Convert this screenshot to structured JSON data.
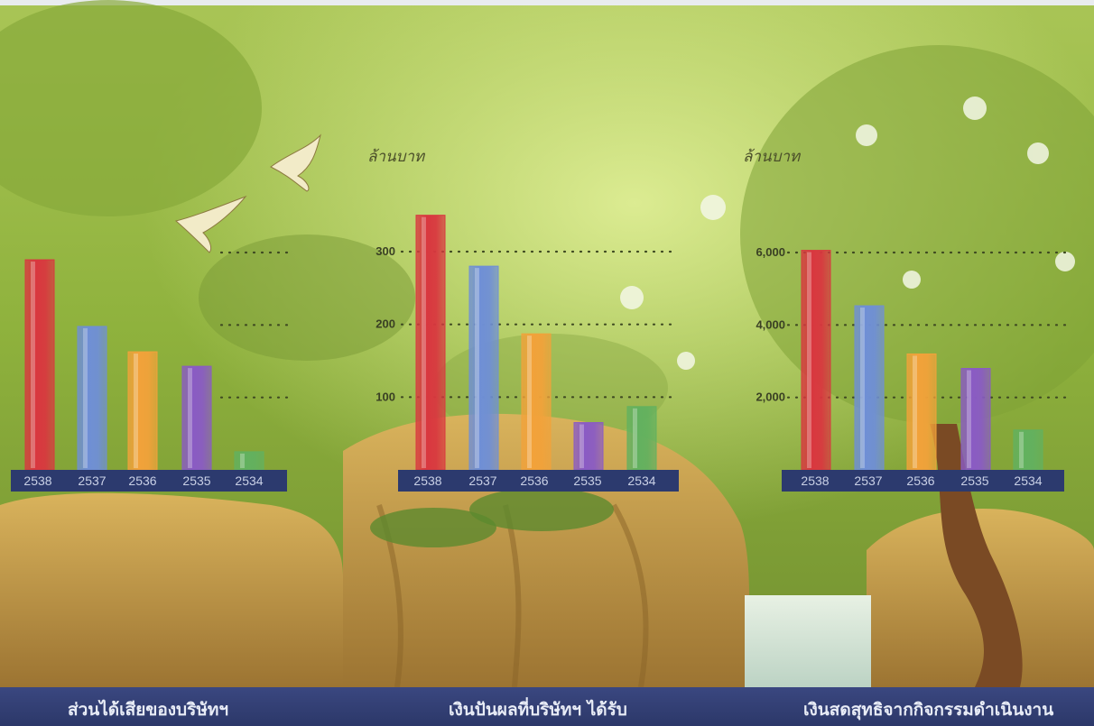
{
  "colors": {
    "red": "#d9373f",
    "blue": "#6f8fd6",
    "orange": "#f2a23a",
    "purple": "#8a5bc4",
    "green": "#62b15f",
    "year_band": "#2c3a6e",
    "caption_band": "#2f3b70"
  },
  "chart_data": [
    {
      "type": "bar",
      "title": "ส่วนได้เสียของบริษัทฯ",
      "unit_label": "",
      "categories": [
        "2538",
        "2537",
        "2536",
        "2535",
        "2534"
      ],
      "values": [
        290,
        198,
        163,
        143,
        25
      ],
      "yticks": [
        100,
        200,
        300
      ],
      "ytick_labels": [
        "",
        "",
        ""
      ],
      "ylim": [
        0,
        300
      ],
      "grid": "dotted"
    },
    {
      "type": "bar",
      "title": "เงินปันผลที่บริษัทฯ ได้รับ",
      "unit_label": "ล้านบาท",
      "categories": [
        "2538",
        "2537",
        "2536",
        "2535",
        "2534"
      ],
      "values": [
        350,
        280,
        187,
        65,
        87
      ],
      "yticks": [
        100,
        200,
        300
      ],
      "ytick_labels": [
        "100",
        "200",
        "300"
      ],
      "ylim": [
        0,
        300
      ],
      "grid": "dotted"
    },
    {
      "type": "bar",
      "title": "เงินสดสุทธิจากกิจกรรมดำเนินงาน",
      "unit_label": "ล้านบาท",
      "categories": [
        "2538",
        "2537",
        "2536",
        "2535",
        "2534"
      ],
      "values": [
        6060,
        4530,
        3200,
        2800,
        1100
      ],
      "yticks": [
        2000,
        4000,
        6000
      ],
      "ytick_labels": [
        "2,000",
        "4,000",
        "6,000"
      ],
      "ylim": [
        0,
        6000
      ],
      "grid": "dotted"
    }
  ]
}
